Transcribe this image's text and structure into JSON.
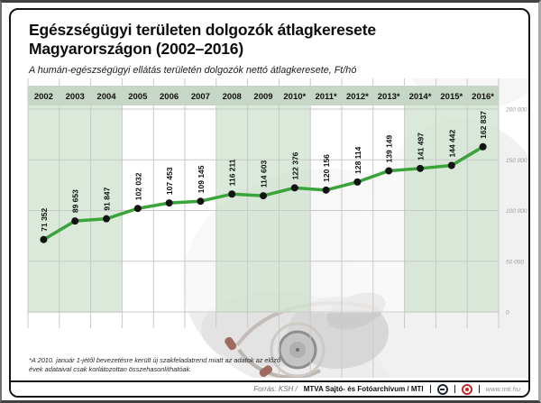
{
  "header": {
    "title_line1": "Egészségügyi területen dolgozók átlagkeresete",
    "title_line2": "Magyarországon (2002–2016)",
    "subtitle": "A humán-egészségügyi ellátás területén dolgozók nettó átlagkeresete, Ft/hó"
  },
  "chart_data": {
    "type": "line",
    "categories": [
      "2002",
      "2003",
      "2004",
      "2005",
      "2006",
      "2007",
      "2008",
      "2009",
      "2010*",
      "2011*",
      "2012*",
      "2013*",
      "2014*",
      "2015*",
      "2016*"
    ],
    "values": [
      71352,
      89653,
      91847,
      102032,
      107453,
      109145,
      116211,
      114603,
      122376,
      120156,
      128114,
      139149,
      141497,
      144442,
      162837
    ],
    "y_ticks": [
      "200 000",
      "150 000",
      "100 000",
      "50 000",
      "0"
    ],
    "ylim": [
      0,
      200000
    ],
    "grid": true,
    "legend": "none",
    "green_columns": [
      0,
      1,
      2,
      6,
      7,
      8,
      12,
      13,
      14
    ],
    "colors": {
      "line": "#3aa43a",
      "point": "#131313",
      "header_band": "#c7d7c7",
      "stripe_green": "#d2e4d2",
      "grid": "#c9c9c9",
      "axis_text": "#9b9b9b",
      "label_text": "#0f0f0f"
    }
  },
  "footnote": {
    "line1": "*A 2010. január 1-jétől bevezetésre került új szakfeladatrend miatt az adatok az előző",
    "line2": "évek adataival csak korlátozottan összehasonlíthatóak."
  },
  "footer": {
    "source_prefix": "Forrás: KSH /",
    "source_bold": "MTVA Sajtó- és Fotóarchívum / MTI",
    "website": "www.mti.hu"
  }
}
